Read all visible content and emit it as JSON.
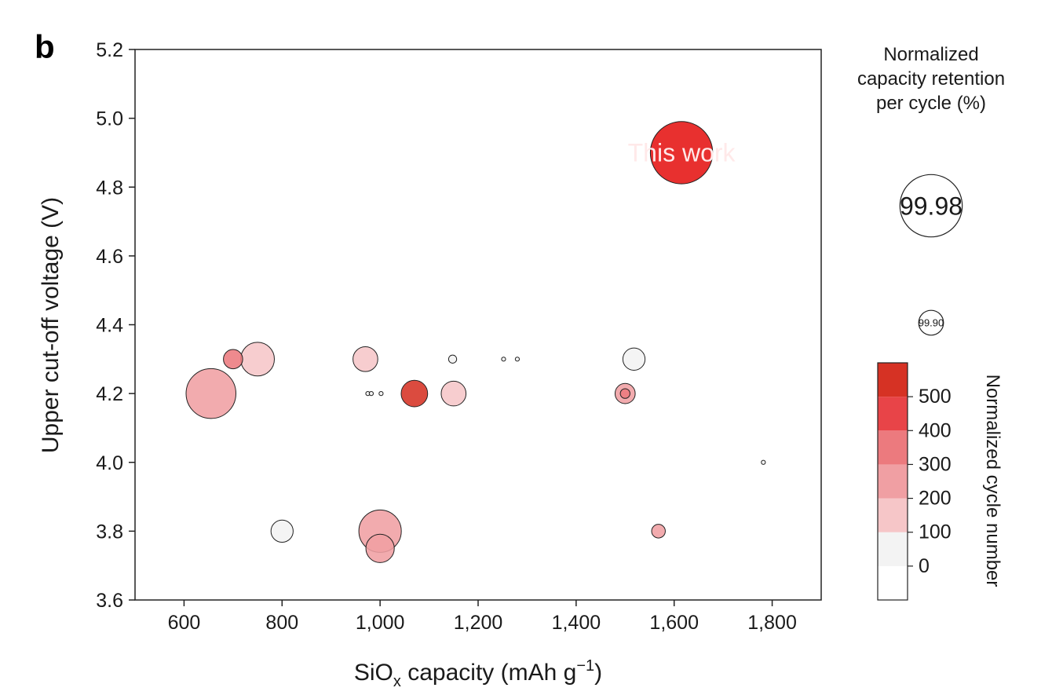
{
  "panel_letter": "b",
  "chart_data": {
    "type": "scatter",
    "variant": "bubble",
    "xlabel": "SiO",
    "xlabel_sub": "x",
    "xlabel_rest": " capacity (mAh g",
    "xlabel_sup": "−1",
    "xlabel_end": ")",
    "ylabel": "Upper cut-off voltage (V)",
    "xlim": [
      500,
      1900
    ],
    "ylim": [
      3.6,
      5.2
    ],
    "x_ticks": [
      600,
      800,
      1000,
      1200,
      1400,
      1600,
      1800
    ],
    "x_tick_labels": [
      "600",
      "800",
      "1,000",
      "1,200",
      "1,400",
      "1,600",
      "1,800"
    ],
    "y_ticks": [
      3.6,
      3.8,
      4.0,
      4.2,
      4.4,
      4.6,
      4.8,
      5.0,
      5.2
    ],
    "y_tick_labels": [
      "3.6",
      "3.8",
      "4.0",
      "4.2",
      "4.4",
      "4.6",
      "4.8",
      "5.0",
      "5.2"
    ],
    "grid": false,
    "size_encodes": "normalized capacity retention per cycle (%)",
    "color_encodes": "normalized cycle number",
    "points": [
      {
        "x": 1615,
        "y": 4.9,
        "retention": 99.98,
        "cycles": 450,
        "label": "This work"
      },
      {
        "x": 655,
        "y": 4.2,
        "retention": 99.97,
        "cycles": 250,
        "label": ""
      },
      {
        "x": 750,
        "y": 4.3,
        "retention": 99.94,
        "cycles": 150,
        "label": ""
      },
      {
        "x": 700,
        "y": 4.3,
        "retention": 99.85,
        "cycles": 350,
        "label": ""
      },
      {
        "x": 970,
        "y": 4.3,
        "retention": 99.9,
        "cycles": 150,
        "label": ""
      },
      {
        "x": 1070,
        "y": 4.2,
        "retention": 99.91,
        "cycles": 550,
        "label": ""
      },
      {
        "x": 1150,
        "y": 4.2,
        "retention": 99.9,
        "cycles": 150,
        "label": ""
      },
      {
        "x": 1148,
        "y": 4.3,
        "retention": 99.5,
        "cycles": 50,
        "label": ""
      },
      {
        "x": 1252,
        "y": 4.3,
        "retention": 99.0,
        "cycles": 50,
        "label": ""
      },
      {
        "x": 1280,
        "y": 4.3,
        "retention": 99.0,
        "cycles": 50,
        "label": ""
      },
      {
        "x": 975,
        "y": 4.2,
        "retention": 99.0,
        "cycles": 50,
        "label": ""
      },
      {
        "x": 982,
        "y": 4.2,
        "retention": 99.0,
        "cycles": 50,
        "label": ""
      },
      {
        "x": 1002,
        "y": 4.2,
        "retention": 99.0,
        "cycles": 50,
        "label": ""
      },
      {
        "x": 1518,
        "y": 4.3,
        "retention": 99.88,
        "cycles": 50,
        "label": ""
      },
      {
        "x": 1500,
        "y": 4.2,
        "retention": 99.86,
        "cycles": 250,
        "label": ""
      },
      {
        "x": 1500,
        "y": 4.2,
        "retention": 99.6,
        "cycles": 350,
        "label": ""
      },
      {
        "x": 1782,
        "y": 4.0,
        "retention": 99.0,
        "cycles": 50,
        "label": ""
      },
      {
        "x": 800,
        "y": 3.8,
        "retention": 99.88,
        "cycles": 50,
        "label": ""
      },
      {
        "x": 1000,
        "y": 3.8,
        "retention": 99.96,
        "cycles": 250,
        "label": ""
      },
      {
        "x": 1000,
        "y": 3.75,
        "retention": 99.92,
        "cycles": 250,
        "label": ""
      },
      {
        "x": 1568,
        "y": 3.8,
        "retention": 99.75,
        "cycles": 250,
        "label": ""
      }
    ],
    "size_legend": {
      "title": [
        "Normalized",
        "capacity retention",
        "per cycle (%)"
      ],
      "items": [
        {
          "label": "99.98",
          "retention": 99.98
        },
        {
          "label": "99.90",
          "retention": 99.9
        }
      ]
    },
    "color_legend": {
      "title": "Normalized cycle number",
      "tick_labels": [
        "0",
        "100",
        "200",
        "300",
        "400",
        "500"
      ],
      "tick_values": [
        0,
        100,
        200,
        300,
        400,
        500
      ],
      "bins": [
        {
          "from": -100,
          "to": 0,
          "color": "#ffffff"
        },
        {
          "from": 0,
          "to": 100,
          "color": "#f3f3f3"
        },
        {
          "from": 100,
          "to": 200,
          "color": "#f6c6c8"
        },
        {
          "from": 200,
          "to": 300,
          "color": "#f09fa3"
        },
        {
          "from": 300,
          "to": 400,
          "color": "#ec7a7e"
        },
        {
          "from": 400,
          "to": 500,
          "color": "#e84448"
        },
        {
          "from": 500,
          "to": 600,
          "color": "#d63224"
        }
      ]
    },
    "highlight_color": "#e8302f"
  }
}
